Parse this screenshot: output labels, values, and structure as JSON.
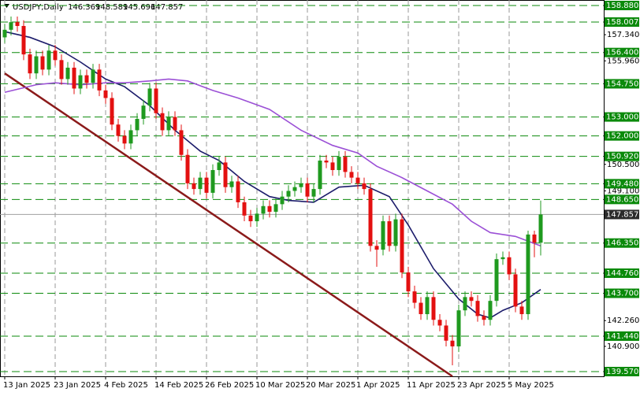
{
  "header": {
    "symbol": "USDJPY,Daily",
    "open": 146.369,
    "high": 148.589,
    "low": 145.696,
    "close": 147.857
  },
  "chart_data": {
    "type": "candlestick",
    "bull_color": "#1f9a1f",
    "bear_color": "#e31010",
    "categories": [
      "13 Jan 2025",
      null,
      null,
      null,
      null,
      null,
      null,
      null,
      "23 Jan 2025",
      null,
      null,
      null,
      null,
      null,
      null,
      null,
      "4 Feb 2025",
      null,
      null,
      null,
      null,
      null,
      null,
      null,
      "14 Feb 2025",
      null,
      null,
      null,
      null,
      null,
      null,
      null,
      "26 Feb 2025",
      null,
      null,
      null,
      null,
      null,
      null,
      null,
      "10 Mar 2025",
      null,
      null,
      null,
      null,
      null,
      null,
      null,
      "20 Mar 2025",
      null,
      null,
      null,
      null,
      null,
      null,
      null,
      "1 Apr 2025",
      null,
      null,
      null,
      null,
      null,
      null,
      null,
      "11 Apr 2025",
      null,
      null,
      null,
      null,
      null,
      null,
      null,
      "23 Apr 2025",
      null,
      null,
      null,
      null,
      null,
      null,
      null,
      "5 May 2025",
      null,
      null,
      null,
      null,
      null
    ],
    "open": [
      157.2,
      157.6,
      158.0,
      157.8,
      156.3,
      155.3,
      156.2,
      155.5,
      156.5,
      156.0,
      155.0,
      155.6,
      154.5,
      155.2,
      154.8,
      155.5,
      154.4,
      154.0,
      152.6,
      152.0,
      151.6,
      152.3,
      152.9,
      153.6,
      154.5,
      153.2,
      152.3,
      153.0,
      152.3,
      151.0,
      149.5,
      149.2,
      149.8,
      149.0,
      150.2,
      150.6,
      149.3,
      149.6,
      148.5,
      147.8,
      147.5,
      147.9,
      148.3,
      148.0,
      148.4,
      148.8,
      149.1,
      149.3,
      149.5,
      148.8,
      149.2,
      150.7,
      150.6,
      150.2,
      150.9,
      150.1,
      149.8,
      149.5,
      149.2,
      146.2,
      146.0,
      147.5,
      146.2,
      147.6,
      144.8,
      143.8,
      143.2,
      142.6,
      143.5,
      142.3,
      142.0,
      141.2,
      140.9,
      142.8,
      143.5,
      143.3,
      142.5,
      142.3,
      143.3,
      145.5,
      145.6,
      144.7,
      143.0,
      142.6,
      146.8,
      146.369
    ],
    "high": [
      157.9,
      158.3,
      158.3,
      158.1,
      156.6,
      156.5,
      156.5,
      156.8,
      156.8,
      156.3,
      155.9,
      155.9,
      155.5,
      155.5,
      155.8,
      155.8,
      154.7,
      154.3,
      152.9,
      152.3,
      152.6,
      153.2,
      153.9,
      154.8,
      154.8,
      153.5,
      153.3,
      153.3,
      152.6,
      151.3,
      149.8,
      150.1,
      150.1,
      150.5,
      150.9,
      150.9,
      149.9,
      149.9,
      148.8,
      148.1,
      148.2,
      148.6,
      148.6,
      148.7,
      149.1,
      149.4,
      149.6,
      149.8,
      149.8,
      149.5,
      151.0,
      151.0,
      150.9,
      151.2,
      151.2,
      150.4,
      150.1,
      149.8,
      149.5,
      146.5,
      147.8,
      147.8,
      147.9,
      147.9,
      145.1,
      144.1,
      143.5,
      143.8,
      143.8,
      142.6,
      142.3,
      141.5,
      143.1,
      143.8,
      143.8,
      143.6,
      142.8,
      143.6,
      145.8,
      145.9,
      145.9,
      145.0,
      143.3,
      147.0,
      147.0,
      148.589
    ],
    "low": [
      156.9,
      157.3,
      157.5,
      156.0,
      155.0,
      155.0,
      155.2,
      155.2,
      155.7,
      154.7,
      154.7,
      154.2,
      154.2,
      154.5,
      154.5,
      154.1,
      153.7,
      152.3,
      151.7,
      151.3,
      151.3,
      152.0,
      152.6,
      153.3,
      152.9,
      152.0,
      152.0,
      152.0,
      150.7,
      149.2,
      148.9,
      148.9,
      148.7,
      148.7,
      149.9,
      149.0,
      149.0,
      148.2,
      147.5,
      147.2,
      147.2,
      147.6,
      147.7,
      147.7,
      148.1,
      148.5,
      148.8,
      149.0,
      148.5,
      148.5,
      148.9,
      150.3,
      149.9,
      149.9,
      149.8,
      149.5,
      149.2,
      148.9,
      145.9,
      145.1,
      145.7,
      145.9,
      145.9,
      144.5,
      143.5,
      142.9,
      142.3,
      142.3,
      142.0,
      141.7,
      140.9,
      139.9,
      140.6,
      142.5,
      143.0,
      142.2,
      142.0,
      142.0,
      143.0,
      145.2,
      144.4,
      142.7,
      142.3,
      142.3,
      145.6,
      145.696
    ],
    "close": [
      157.6,
      158.0,
      157.8,
      156.3,
      155.3,
      156.2,
      155.5,
      156.5,
      156.0,
      155.0,
      155.6,
      154.5,
      155.2,
      154.8,
      155.5,
      154.4,
      154.0,
      152.6,
      152.0,
      151.6,
      152.3,
      152.9,
      153.6,
      154.5,
      153.2,
      152.3,
      153.0,
      152.3,
      151.0,
      149.5,
      149.2,
      149.8,
      149.0,
      150.2,
      150.6,
      149.3,
      149.6,
      148.5,
      147.8,
      147.5,
      147.9,
      148.3,
      148.0,
      148.4,
      148.8,
      149.1,
      149.3,
      149.5,
      148.8,
      149.2,
      150.7,
      150.6,
      150.2,
      150.9,
      150.1,
      149.8,
      149.5,
      149.2,
      146.2,
      146.0,
      147.5,
      146.2,
      147.6,
      144.8,
      143.8,
      143.2,
      142.6,
      143.5,
      142.3,
      142.0,
      141.2,
      140.9,
      142.8,
      143.5,
      143.3,
      142.5,
      142.3,
      143.3,
      145.5,
      145.6,
      144.7,
      143.0,
      142.6,
      146.8,
      146.369,
      147.857
    ],
    "moving_averages": [
      {
        "color": "#1c1c6b",
        "x": [
          0,
          4,
          8,
          12,
          16,
          19,
          23,
          27,
          31,
          34,
          38,
          42,
          45,
          49,
          53,
          57,
          61,
          64,
          68,
          72,
          75,
          77,
          79,
          82,
          85
        ],
        "values": [
          157.5,
          157.2,
          156.7,
          155.9,
          155.0,
          154.6,
          153.6,
          152.3,
          151.2,
          150.7,
          149.6,
          148.8,
          148.6,
          148.5,
          149.3,
          149.4,
          148.8,
          147.3,
          145.0,
          143.4,
          142.6,
          142.4,
          142.8,
          143.2,
          143.9
        ]
      },
      {
        "color": "#9b50d6",
        "x": [
          0,
          5,
          8,
          12,
          16,
          19,
          23,
          26,
          29,
          33,
          37,
          42,
          47,
          52,
          56,
          59,
          63,
          67,
          71,
          74,
          77,
          81,
          85
        ],
        "values": [
          154.3,
          154.7,
          154.8,
          154.7,
          154.8,
          154.8,
          154.9,
          155.0,
          154.9,
          154.4,
          154.0,
          153.4,
          152.3,
          151.5,
          151.1,
          150.4,
          149.8,
          149.1,
          148.4,
          147.5,
          146.9,
          146.7,
          146.2
        ]
      }
    ],
    "trendline": {
      "color": "#8b1a1a",
      "x": [
        0,
        71
      ],
      "values": [
        155.3,
        139.32
      ]
    },
    "levels": [
      {
        "value": 158.88,
        "label": "158.880"
      },
      158.007,
      {
        "value": 156.4,
        "label": "156.400"
      },
      {
        "value": 154.75,
        "label": "154.750"
      },
      {
        "value": 153.0,
        "label": "153.000"
      },
      {
        "value": 152.0,
        "label": "152.000"
      },
      {
        "value": 150.92,
        "label": "150.920"
      },
      {
        "value": 149.48,
        "label": "149.480"
      },
      {
        "value": 148.65,
        "label": "148.650"
      },
      {
        "value": 146.35,
        "label": "146.350"
      },
      {
        "value": 144.76,
        "label": "144.760"
      },
      {
        "value": 143.7,
        "label": "143.700"
      },
      {
        "value": 141.44,
        "label": "141.440"
      },
      {
        "value": 139.57,
        "label": "139.570"
      }
    ],
    "level_color": "#0b8a0b",
    "current_price": 147.857,
    "xlim": [
      -0.75,
      95
    ],
    "ylim": [
      139.32,
      159.17
    ],
    "yticks": [
      {
        "value": 157.34,
        "label": "157.340"
      },
      {
        "value": 155.96,
        "label": "155.960"
      },
      {
        "value": 150.5,
        "label": "150.500"
      },
      {
        "value": 149.1,
        "label": "149.100"
      },
      {
        "value": 142.26,
        "label": "142.260"
      },
      {
        "value": 140.9,
        "label": "140.900"
      }
    ],
    "grid": true
  }
}
